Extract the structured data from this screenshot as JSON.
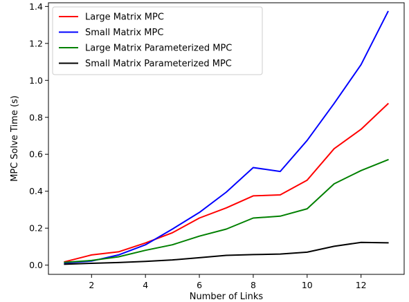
{
  "chart_data": {
    "type": "line",
    "xlabel": "Number of Links",
    "ylabel": "MPC Solve Time (s)",
    "xlim": [
      0.4,
      13.6
    ],
    "ylim": [
      -0.05,
      1.42
    ],
    "xticks": [
      2,
      4,
      6,
      8,
      10,
      12
    ],
    "yticks": [
      0.0,
      0.2,
      0.4,
      0.6,
      0.8,
      1.0,
      1.2,
      1.4
    ],
    "ytick_labels": [
      "0.0",
      "0.2",
      "0.4",
      "0.6",
      "0.8",
      "1.0",
      "1.2",
      "1.4"
    ],
    "grid": false,
    "legend_position": "top-left",
    "x": [
      1,
      2,
      3,
      4,
      5,
      6,
      7,
      8,
      9,
      10,
      11,
      12,
      13
    ],
    "series": [
      {
        "name": "Large Matrix MPC",
        "color": "#ff0000",
        "values": [
          0.018,
          0.055,
          0.072,
          0.12,
          0.175,
          0.255,
          0.31,
          0.375,
          0.38,
          0.46,
          0.63,
          0.735,
          0.873
        ]
      },
      {
        "name": "Small Matrix MPC",
        "color": "#0000ff",
        "values": [
          0.012,
          0.022,
          0.055,
          0.11,
          0.195,
          0.285,
          0.395,
          0.528,
          0.507,
          0.675,
          0.875,
          1.085,
          1.372
        ]
      },
      {
        "name": "Large Matrix Parameterized MPC",
        "color": "#008000",
        "values": [
          0.015,
          0.025,
          0.045,
          0.08,
          0.11,
          0.157,
          0.195,
          0.255,
          0.265,
          0.305,
          0.44,
          0.512,
          0.57
        ]
      },
      {
        "name": "Small Matrix Parameterized MPC",
        "color": "#000000",
        "values": [
          0.005,
          0.01,
          0.014,
          0.02,
          0.028,
          0.04,
          0.053,
          0.057,
          0.06,
          0.07,
          0.102,
          0.123,
          0.121
        ]
      }
    ]
  }
}
